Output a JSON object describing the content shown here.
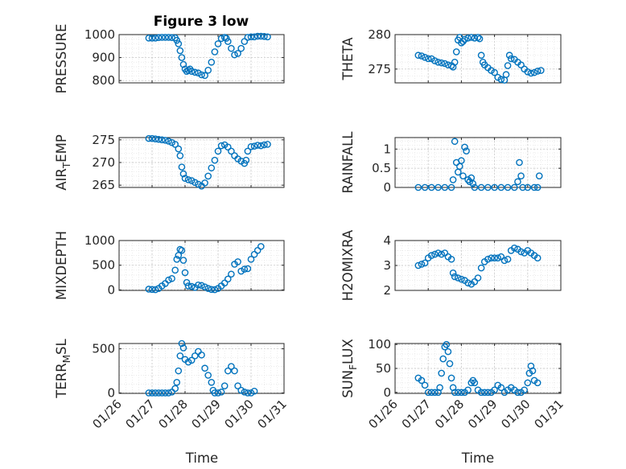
{
  "figure": {
    "title": "Figure 3 low",
    "marker_color": "#0072BD",
    "xlabel": "Time",
    "xticks": [
      "01/26",
      "01/27",
      "01/28",
      "01/29",
      "01/30",
      "01/31"
    ]
  },
  "chart_data": [
    {
      "type": "scatter",
      "marker": "circle",
      "ylabel": "PRESSURE",
      "ylabel_sub": null,
      "ylim": [
        790,
        1000
      ],
      "yticks": [
        800,
        900,
        1000
      ],
      "xlim": [
        "01/26",
        "01/31"
      ],
      "grid": true,
      "points": [
        [
          26.9,
          985
        ],
        [
          27.0,
          985
        ],
        [
          27.1,
          985
        ],
        [
          27.2,
          987
        ],
        [
          27.3,
          988
        ],
        [
          27.4,
          988
        ],
        [
          27.5,
          988
        ],
        [
          27.6,
          987
        ],
        [
          27.7,
          986
        ],
        [
          27.75,
          975
        ],
        [
          27.8,
          960
        ],
        [
          27.85,
          930
        ],
        [
          27.9,
          900
        ],
        [
          27.95,
          870
        ],
        [
          28.0,
          850
        ],
        [
          28.05,
          840
        ],
        [
          28.1,
          845
        ],
        [
          28.15,
          850
        ],
        [
          28.2,
          840
        ],
        [
          28.3,
          836
        ],
        [
          28.4,
          833
        ],
        [
          28.5,
          825
        ],
        [
          28.6,
          822
        ],
        [
          28.7,
          845
        ],
        [
          28.8,
          880
        ],
        [
          28.9,
          925
        ],
        [
          29.0,
          960
        ],
        [
          29.1,
          983
        ],
        [
          29.2,
          988
        ],
        [
          29.25,
          984
        ],
        [
          29.3,
          970
        ],
        [
          29.4,
          940
        ],
        [
          29.5,
          912
        ],
        [
          29.6,
          918
        ],
        [
          29.7,
          940
        ],
        [
          29.8,
          970
        ],
        [
          29.9,
          988
        ],
        [
          30.0,
          990
        ],
        [
          30.1,
          990
        ],
        [
          30.2,
          993
        ],
        [
          30.3,
          993
        ],
        [
          30.4,
          992
        ],
        [
          30.5,
          990
        ]
      ]
    },
    {
      "type": "scatter",
      "marker": "circle",
      "ylabel": "THETA",
      "ylabel_sub": null,
      "ylim": [
        273,
        280
      ],
      "yticks": [
        275,
        280
      ],
      "xlim": [
        "01/26",
        "01/31"
      ],
      "grid": true,
      "points": [
        [
          26.7,
          277
        ],
        [
          26.8,
          276.9
        ],
        [
          26.9,
          276.7
        ],
        [
          27.0,
          276.5
        ],
        [
          27.1,
          276.5
        ],
        [
          27.2,
          276.2
        ],
        [
          27.3,
          276.0
        ],
        [
          27.4,
          275.9
        ],
        [
          27.5,
          275.8
        ],
        [
          27.6,
          275.6
        ],
        [
          27.7,
          275.5
        ],
        [
          27.75,
          275.3
        ],
        [
          27.8,
          276.0
        ],
        [
          27.85,
          277.5
        ],
        [
          27.9,
          279.2
        ],
        [
          27.95,
          279.6
        ],
        [
          28.0,
          278.8
        ],
        [
          28.05,
          279.0
        ],
        [
          28.1,
          279.3
        ],
        [
          28.2,
          279.5
        ],
        [
          28.3,
          279.6
        ],
        [
          28.4,
          279.5
        ],
        [
          28.5,
          279.6
        ],
        [
          28.55,
          279.4
        ],
        [
          28.6,
          277.0
        ],
        [
          28.65,
          276.0
        ],
        [
          28.7,
          275.6
        ],
        [
          28.8,
          275.2
        ],
        [
          28.9,
          274.8
        ],
        [
          29.0,
          274.5
        ],
        [
          29.1,
          273.8
        ],
        [
          29.2,
          273.5
        ],
        [
          29.3,
          273.4
        ],
        [
          29.35,
          274.2
        ],
        [
          29.4,
          275.5
        ],
        [
          29.45,
          277.0
        ],
        [
          29.5,
          276.5
        ],
        [
          29.6,
          276.4
        ],
        [
          29.7,
          276.0
        ],
        [
          29.8,
          275.6
        ],
        [
          29.9,
          275.0
        ],
        [
          30.0,
          274.6
        ],
        [
          30.1,
          274.4
        ],
        [
          30.2,
          274.5
        ],
        [
          30.3,
          274.7
        ],
        [
          30.4,
          274.8
        ]
      ]
    },
    {
      "type": "scatter",
      "marker": "circle",
      "ylabel": "AIR",
      "ylabel_sub": "T",
      "ylabel_suffix": "EMP",
      "ylim": [
        264.5,
        275.5
      ],
      "yticks": [
        265,
        270,
        275
      ],
      "xlim": [
        "01/26",
        "01/31"
      ],
      "grid": true,
      "points": [
        [
          26.9,
          275.3
        ],
        [
          27.0,
          275.3
        ],
        [
          27.1,
          275.2
        ],
        [
          27.2,
          275.1
        ],
        [
          27.3,
          275.0
        ],
        [
          27.4,
          274.9
        ],
        [
          27.5,
          274.7
        ],
        [
          27.6,
          274.4
        ],
        [
          27.7,
          274.0
        ],
        [
          27.8,
          273.0
        ],
        [
          27.85,
          271.5
        ],
        [
          27.9,
          269.0
        ],
        [
          27.95,
          267.5
        ],
        [
          28.0,
          266.5
        ],
        [
          28.1,
          266.2
        ],
        [
          28.2,
          266.0
        ],
        [
          28.3,
          265.6
        ],
        [
          28.4,
          265.2
        ],
        [
          28.5,
          264.8
        ],
        [
          28.6,
          265.5
        ],
        [
          28.7,
          267.0
        ],
        [
          28.8,
          268.8
        ],
        [
          28.9,
          270.5
        ],
        [
          29.0,
          272.5
        ],
        [
          29.1,
          273.7
        ],
        [
          29.2,
          273.9
        ],
        [
          29.3,
          273.4
        ],
        [
          29.4,
          272.5
        ],
        [
          29.5,
          271.5
        ],
        [
          29.6,
          270.8
        ],
        [
          29.7,
          270.3
        ],
        [
          29.8,
          269.8
        ],
        [
          29.85,
          270.5
        ],
        [
          29.9,
          272.5
        ],
        [
          30.0,
          273.5
        ],
        [
          30.1,
          273.6
        ],
        [
          30.2,
          273.8
        ],
        [
          30.3,
          273.7
        ],
        [
          30.4,
          273.9
        ],
        [
          30.5,
          274.0
        ]
      ]
    },
    {
      "type": "scatter",
      "marker": "circle",
      "ylabel": "RAINFALL",
      "ylabel_sub": null,
      "ylim": [
        0,
        1.3
      ],
      "yticks": [
        0,
        0.5,
        1
      ],
      "xlim": [
        "01/26",
        "01/31"
      ],
      "grid": true,
      "points": [
        [
          26.7,
          0
        ],
        [
          26.9,
          0
        ],
        [
          27.1,
          0
        ],
        [
          27.3,
          0
        ],
        [
          27.5,
          0
        ],
        [
          27.7,
          0
        ],
        [
          27.75,
          0.2
        ],
        [
          27.8,
          1.2
        ],
        [
          27.85,
          0.65
        ],
        [
          27.9,
          0.4
        ],
        [
          27.95,
          0.55
        ],
        [
          28.0,
          0.7
        ],
        [
          28.05,
          0.3
        ],
        [
          28.1,
          1.05
        ],
        [
          28.15,
          0.95
        ],
        [
          28.2,
          0.2
        ],
        [
          28.25,
          0.15
        ],
        [
          28.3,
          0.25
        ],
        [
          28.35,
          0.1
        ],
        [
          28.4,
          0
        ],
        [
          28.6,
          0
        ],
        [
          28.8,
          0
        ],
        [
          29.0,
          0
        ],
        [
          29.2,
          0
        ],
        [
          29.4,
          0
        ],
        [
          29.6,
          0
        ],
        [
          29.7,
          0.15
        ],
        [
          29.75,
          0.65
        ],
        [
          29.8,
          0.3
        ],
        [
          29.85,
          0
        ],
        [
          30.0,
          0
        ],
        [
          30.2,
          0
        ],
        [
          30.3,
          0
        ],
        [
          30.35,
          0.3
        ]
      ]
    },
    {
      "type": "scatter",
      "marker": "circle",
      "ylabel": "MIXDEPTH",
      "ylabel_sub": null,
      "ylim": [
        -10,
        1000
      ],
      "yticks": [
        0,
        500,
        1000
      ],
      "xlim": [
        "01/26",
        "01/31"
      ],
      "grid": true,
      "points": [
        [
          26.9,
          15
        ],
        [
          27.0,
          10
        ],
        [
          27.1,
          5
        ],
        [
          27.2,
          30
        ],
        [
          27.3,
          80
        ],
        [
          27.4,
          130
        ],
        [
          27.5,
          200
        ],
        [
          27.6,
          230
        ],
        [
          27.7,
          400
        ],
        [
          27.75,
          620
        ],
        [
          27.8,
          700
        ],
        [
          27.85,
          820
        ],
        [
          27.9,
          800
        ],
        [
          27.95,
          600
        ],
        [
          28.0,
          350
        ],
        [
          28.05,
          150
        ],
        [
          28.1,
          80
        ],
        [
          28.2,
          70
        ],
        [
          28.3,
          50
        ],
        [
          28.4,
          100
        ],
        [
          28.5,
          90
        ],
        [
          28.6,
          60
        ],
        [
          28.7,
          30
        ],
        [
          28.8,
          10
        ],
        [
          28.9,
          5
        ],
        [
          29.0,
          30
        ],
        [
          29.1,
          80
        ],
        [
          29.2,
          140
        ],
        [
          29.3,
          220
        ],
        [
          29.4,
          320
        ],
        [
          29.5,
          520
        ],
        [
          29.6,
          570
        ],
        [
          29.7,
          380
        ],
        [
          29.8,
          420
        ],
        [
          29.9,
          430
        ],
        [
          30.0,
          620
        ],
        [
          30.1,
          720
        ],
        [
          30.2,
          800
        ],
        [
          30.3,
          880
        ]
      ]
    },
    {
      "type": "scatter",
      "marker": "circle",
      "ylabel": "H2OMIXRA",
      "ylabel_sub": null,
      "ylim": [
        2,
        4
      ],
      "yticks": [
        2,
        3,
        4
      ],
      "xlim": [
        "01/26",
        "01/31"
      ],
      "grid": true,
      "points": [
        [
          26.7,
          3.0
        ],
        [
          26.8,
          3.05
        ],
        [
          26.9,
          3.1
        ],
        [
          27.0,
          3.3
        ],
        [
          27.1,
          3.4
        ],
        [
          27.2,
          3.45
        ],
        [
          27.3,
          3.5
        ],
        [
          27.4,
          3.45
        ],
        [
          27.5,
          3.5
        ],
        [
          27.6,
          3.35
        ],
        [
          27.7,
          3.25
        ],
        [
          27.75,
          2.7
        ],
        [
          27.8,
          2.55
        ],
        [
          27.9,
          2.5
        ],
        [
          28.0,
          2.45
        ],
        [
          28.1,
          2.4
        ],
        [
          28.2,
          2.3
        ],
        [
          28.3,
          2.25
        ],
        [
          28.4,
          2.35
        ],
        [
          28.5,
          2.5
        ],
        [
          28.6,
          2.9
        ],
        [
          28.7,
          3.15
        ],
        [
          28.8,
          3.25
        ],
        [
          28.9,
          3.3
        ],
        [
          29.0,
          3.3
        ],
        [
          29.1,
          3.3
        ],
        [
          29.2,
          3.35
        ],
        [
          29.3,
          3.2
        ],
        [
          29.4,
          3.25
        ],
        [
          29.5,
          3.6
        ],
        [
          29.6,
          3.7
        ],
        [
          29.7,
          3.65
        ],
        [
          29.8,
          3.55
        ],
        [
          29.9,
          3.5
        ],
        [
          30.0,
          3.6
        ],
        [
          30.1,
          3.5
        ],
        [
          30.2,
          3.4
        ],
        [
          30.3,
          3.3
        ]
      ]
    },
    {
      "type": "scatter",
      "marker": "circle",
      "ylabel": "TERR",
      "ylabel_sub": "M",
      "ylabel_suffix": "SL",
      "ylim": [
        -5,
        560
      ],
      "yticks": [
        0,
        500
      ],
      "xlim": [
        "01/26",
        "01/31"
      ],
      "grid": true,
      "points": [
        [
          26.9,
          0
        ],
        [
          27.0,
          0
        ],
        [
          27.1,
          0
        ],
        [
          27.2,
          0
        ],
        [
          27.3,
          0
        ],
        [
          27.4,
          0
        ],
        [
          27.5,
          0
        ],
        [
          27.6,
          10
        ],
        [
          27.7,
          50
        ],
        [
          27.75,
          120
        ],
        [
          27.8,
          250
        ],
        [
          27.85,
          420
        ],
        [
          27.9,
          560
        ],
        [
          27.95,
          510
        ],
        [
          28.0,
          380
        ],
        [
          28.1,
          350
        ],
        [
          28.2,
          370
        ],
        [
          28.3,
          420
        ],
        [
          28.4,
          470
        ],
        [
          28.5,
          430
        ],
        [
          28.6,
          280
        ],
        [
          28.7,
          200
        ],
        [
          28.8,
          120
        ],
        [
          28.85,
          30
        ],
        [
          28.9,
          0
        ],
        [
          29.0,
          0
        ],
        [
          29.1,
          10
        ],
        [
          29.2,
          80
        ],
        [
          29.3,
          250
        ],
        [
          29.4,
          300
        ],
        [
          29.5,
          250
        ],
        [
          29.6,
          80
        ],
        [
          29.7,
          30
        ],
        [
          29.8,
          10
        ],
        [
          29.9,
          0
        ],
        [
          30.0,
          0
        ],
        [
          30.1,
          20
        ]
      ]
    },
    {
      "type": "scatter",
      "marker": "circle",
      "ylabel": "SUN",
      "ylabel_sub": "F",
      "ylabel_suffix": "LUX",
      "ylim": [
        -2,
        102
      ],
      "yticks": [
        0,
        50,
        100
      ],
      "xlim": [
        "01/26",
        "01/31"
      ],
      "grid": true,
      "points": [
        [
          26.7,
          30
        ],
        [
          26.8,
          25
        ],
        [
          26.9,
          15
        ],
        [
          27.0,
          0
        ],
        [
          27.1,
          0
        ],
        [
          27.2,
          0
        ],
        [
          27.3,
          0
        ],
        [
          27.35,
          10
        ],
        [
          27.4,
          40
        ],
        [
          27.45,
          70
        ],
        [
          27.5,
          95
        ],
        [
          27.55,
          100
        ],
        [
          27.6,
          85
        ],
        [
          27.65,
          60
        ],
        [
          27.7,
          30
        ],
        [
          27.75,
          10
        ],
        [
          27.8,
          0
        ],
        [
          27.9,
          0
        ],
        [
          28.0,
          0
        ],
        [
          28.1,
          0
        ],
        [
          28.2,
          5
        ],
        [
          28.3,
          20
        ],
        [
          28.35,
          25
        ],
        [
          28.4,
          20
        ],
        [
          28.5,
          5
        ],
        [
          28.6,
          0
        ],
        [
          28.7,
          0
        ],
        [
          28.8,
          0
        ],
        [
          28.9,
          0
        ],
        [
          29.0,
          5
        ],
        [
          29.1,
          15
        ],
        [
          29.2,
          10
        ],
        [
          29.3,
          0
        ],
        [
          29.4,
          5
        ],
        [
          29.5,
          10
        ],
        [
          29.6,
          5
        ],
        [
          29.7,
          0
        ],
        [
          29.8,
          0
        ],
        [
          29.9,
          5
        ],
        [
          30.0,
          20
        ],
        [
          30.05,
          40
        ],
        [
          30.1,
          55
        ],
        [
          30.15,
          45
        ],
        [
          30.2,
          25
        ],
        [
          30.3,
          20
        ]
      ]
    }
  ]
}
